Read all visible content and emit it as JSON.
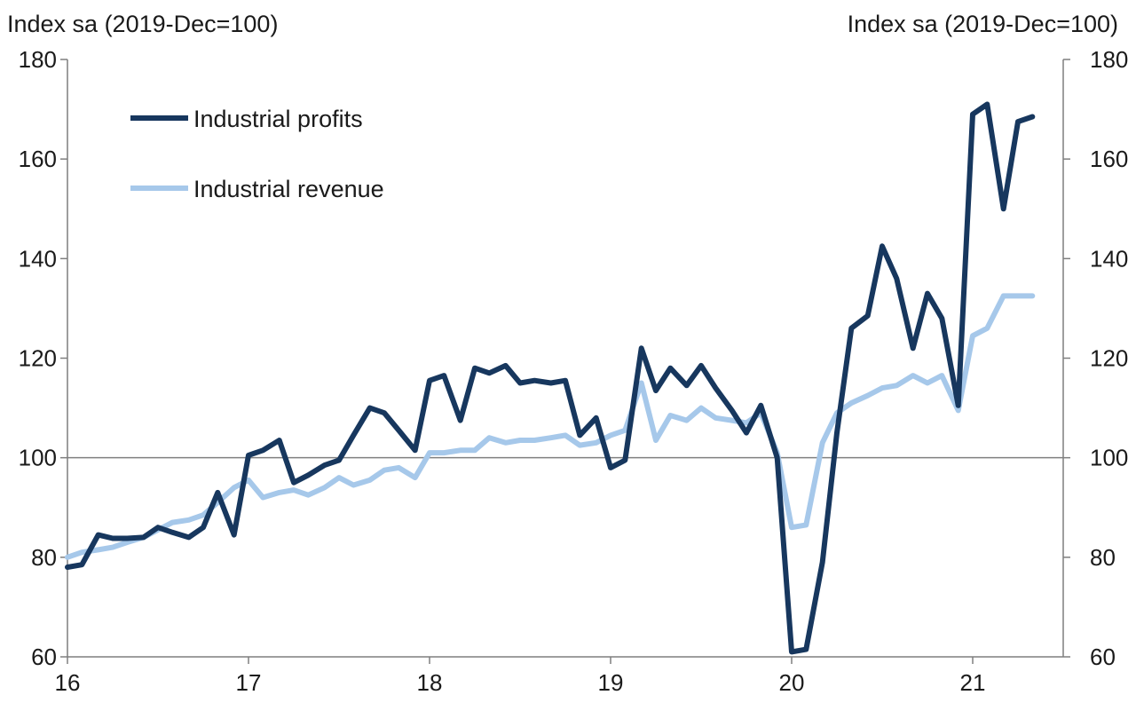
{
  "chart_data": {
    "type": "line",
    "ylabel_left": "Index sa (2019-Dec=100)",
    "ylabel_right": "Index sa (2019-Dec=100)",
    "ylim": [
      60,
      180
    ],
    "yticks": [
      60,
      80,
      100,
      120,
      140,
      160,
      180
    ],
    "yticks_right": [
      60,
      80,
      100,
      120,
      140,
      160,
      180
    ],
    "reference_line": 100,
    "xlim": [
      2016,
      2021.5
    ],
    "xticks": [
      {
        "value": 2016,
        "label": "16"
      },
      {
        "value": 2017,
        "label": "17"
      },
      {
        "value": 2018,
        "label": "18"
      },
      {
        "value": 2019,
        "label": "19"
      },
      {
        "value": 2020,
        "label": "20"
      },
      {
        "value": 2021,
        "label": "21"
      }
    ],
    "legend_position": "top-left",
    "series": [
      {
        "name": "Industrial profits",
        "color": "#17375e",
        "points": [
          [
            2016.0,
            78.0
          ],
          [
            2016.08,
            78.5
          ],
          [
            2016.17,
            84.5
          ],
          [
            2016.25,
            83.8
          ],
          [
            2016.33,
            83.8
          ],
          [
            2016.42,
            84.0
          ],
          [
            2016.5,
            86.0
          ],
          [
            2016.58,
            85.0
          ],
          [
            2016.67,
            84.0
          ],
          [
            2016.75,
            86.0
          ],
          [
            2016.83,
            93.0
          ],
          [
            2016.92,
            84.5
          ],
          [
            2017.0,
            100.5
          ],
          [
            2017.08,
            101.5
          ],
          [
            2017.17,
            103.5
          ],
          [
            2017.25,
            95.0
          ],
          [
            2017.33,
            96.5
          ],
          [
            2017.42,
            98.5
          ],
          [
            2017.5,
            99.5
          ],
          [
            2017.58,
            104.5
          ],
          [
            2017.67,
            110.0
          ],
          [
            2017.75,
            109.0
          ],
          [
            2017.83,
            105.5
          ],
          [
            2017.92,
            101.5
          ],
          [
            2018.0,
            115.5
          ],
          [
            2018.08,
            116.5
          ],
          [
            2018.17,
            107.5
          ],
          [
            2018.25,
            118.0
          ],
          [
            2018.33,
            117.0
          ],
          [
            2018.42,
            118.5
          ],
          [
            2018.5,
            115.0
          ],
          [
            2018.58,
            115.5
          ],
          [
            2018.67,
            115.0
          ],
          [
            2018.75,
            115.5
          ],
          [
            2018.83,
            104.5
          ],
          [
            2018.92,
            108.0
          ],
          [
            2019.0,
            98.0
          ],
          [
            2019.08,
            99.5
          ],
          [
            2019.17,
            122.0
          ],
          [
            2019.25,
            113.5
          ],
          [
            2019.33,
            118.0
          ],
          [
            2019.42,
            114.5
          ],
          [
            2019.5,
            118.5
          ],
          [
            2019.58,
            114.0
          ],
          [
            2019.67,
            109.5
          ],
          [
            2019.75,
            105.0
          ],
          [
            2019.83,
            110.5
          ],
          [
            2019.92,
            100.0
          ],
          [
            2020.0,
            61.0
          ],
          [
            2020.08,
            61.5
          ],
          [
            2020.17,
            79.0
          ],
          [
            2020.25,
            105.0
          ],
          [
            2020.33,
            126.0
          ],
          [
            2020.42,
            128.5
          ],
          [
            2020.5,
            142.5
          ],
          [
            2020.58,
            136.0
          ],
          [
            2020.67,
            122.0
          ],
          [
            2020.75,
            133.0
          ],
          [
            2020.83,
            128.0
          ],
          [
            2020.92,
            110.5
          ],
          [
            2021.0,
            169.0
          ],
          [
            2021.08,
            171.0
          ],
          [
            2021.17,
            150.0
          ],
          [
            2021.25,
            167.5
          ],
          [
            2021.33,
            168.5
          ]
        ]
      },
      {
        "name": "Industrial revenue",
        "color": "#a6c8ea",
        "points": [
          [
            2016.0,
            80.0
          ],
          [
            2016.08,
            81.0
          ],
          [
            2016.17,
            81.5
          ],
          [
            2016.25,
            82.0
          ],
          [
            2016.33,
            83.0
          ],
          [
            2016.42,
            84.0
          ],
          [
            2016.5,
            85.5
          ],
          [
            2016.58,
            87.0
          ],
          [
            2016.67,
            87.5
          ],
          [
            2016.75,
            88.5
          ],
          [
            2016.83,
            91.0
          ],
          [
            2016.92,
            94.0
          ],
          [
            2017.0,
            95.5
          ],
          [
            2017.08,
            92.0
          ],
          [
            2017.17,
            93.0
          ],
          [
            2017.25,
            93.5
          ],
          [
            2017.33,
            92.5
          ],
          [
            2017.42,
            94.0
          ],
          [
            2017.5,
            96.0
          ],
          [
            2017.58,
            94.5
          ],
          [
            2017.67,
            95.5
          ],
          [
            2017.75,
            97.5
          ],
          [
            2017.83,
            98.0
          ],
          [
            2017.92,
            96.0
          ],
          [
            2018.0,
            101.0
          ],
          [
            2018.08,
            101.0
          ],
          [
            2018.17,
            101.5
          ],
          [
            2018.25,
            101.5
          ],
          [
            2018.33,
            104.0
          ],
          [
            2018.42,
            103.0
          ],
          [
            2018.5,
            103.5
          ],
          [
            2018.58,
            103.5
          ],
          [
            2018.67,
            104.0
          ],
          [
            2018.75,
            104.5
          ],
          [
            2018.83,
            102.5
          ],
          [
            2018.92,
            103.0
          ],
          [
            2019.0,
            104.5
          ],
          [
            2019.08,
            105.5
          ],
          [
            2019.17,
            115.0
          ],
          [
            2019.25,
            103.5
          ],
          [
            2019.33,
            108.5
          ],
          [
            2019.42,
            107.5
          ],
          [
            2019.5,
            110.0
          ],
          [
            2019.58,
            108.0
          ],
          [
            2019.67,
            107.5
          ],
          [
            2019.75,
            107.0
          ],
          [
            2019.83,
            109.0
          ],
          [
            2019.92,
            101.0
          ],
          [
            2020.0,
            86.0
          ],
          [
            2020.08,
            86.5
          ],
          [
            2020.17,
            103.0
          ],
          [
            2020.25,
            109.0
          ],
          [
            2020.33,
            111.0
          ],
          [
            2020.42,
            112.5
          ],
          [
            2020.5,
            114.0
          ],
          [
            2020.58,
            114.5
          ],
          [
            2020.67,
            116.5
          ],
          [
            2020.75,
            115.0
          ],
          [
            2020.83,
            116.5
          ],
          [
            2020.92,
            109.5
          ],
          [
            2021.0,
            124.5
          ],
          [
            2021.08,
            126.0
          ],
          [
            2021.17,
            132.5
          ],
          [
            2021.25,
            132.5
          ],
          [
            2021.33,
            132.5
          ]
        ]
      }
    ]
  }
}
